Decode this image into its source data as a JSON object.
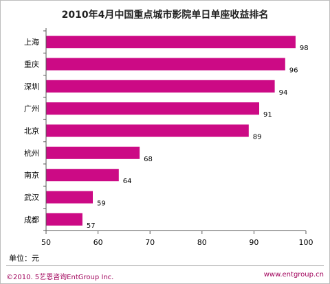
{
  "chart_data": {
    "type": "bar",
    "orientation": "horizontal",
    "title": "2010年4月中国重点城市影院单日单座收益排名",
    "categories": [
      "上海",
      "重庆",
      "深圳",
      "广州",
      "北京",
      "杭州",
      "南京",
      "武汉",
      "成都"
    ],
    "values": [
      98,
      96,
      94,
      91,
      89,
      68,
      64,
      59,
      57
    ],
    "xlim": [
      50,
      100
    ],
    "xticks": [
      50,
      60,
      70,
      80,
      90,
      100
    ],
    "bar_color": "#cc0a85",
    "grid": false,
    "legend": "none"
  },
  "unit_label": "单位：元",
  "footer": {
    "copyright": "©2010. 5艺恩咨询EntGroup Inc.",
    "website": "www.entgroup.cn"
  },
  "colors": {
    "footer_text": "#a0005a",
    "footer_rule": "#9e9e9e"
  }
}
